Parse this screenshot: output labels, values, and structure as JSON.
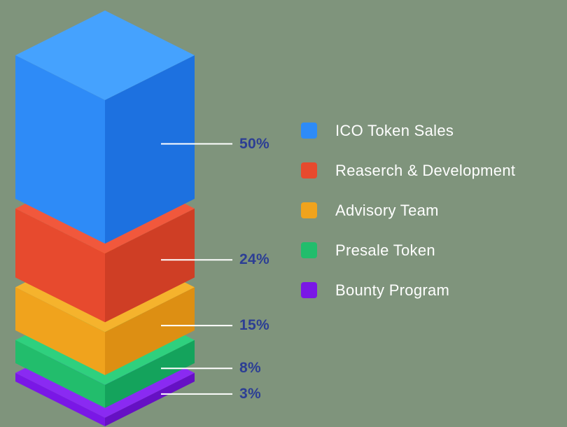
{
  "background": "#7f947c",
  "chart_data": {
    "type": "bar",
    "variant": "isometric-3d-stacked-column",
    "title": "",
    "unit": "%",
    "total": 100,
    "legend_position": "right",
    "value_label_color": "#2c3e94",
    "leader_line_color": "#ffffff",
    "legend_text_color": "#ffffff",
    "segments": [
      {
        "label": "ICO Token Sales",
        "value": 50,
        "value_label": "50%",
        "colors": {
          "top": "#45a2fe",
          "left": "#2e8bf7",
          "right": "#1d71e0"
        }
      },
      {
        "label": "Reaserch & Development",
        "value": 24,
        "value_label": "24%",
        "colors": {
          "top": "#f1583c",
          "left": "#e74a2e",
          "right": "#cf3e25"
        }
      },
      {
        "label": "Advisory Team",
        "value": 15,
        "value_label": "15%",
        "colors": {
          "top": "#f5b32d",
          "left": "#f0a31d",
          "right": "#dd8f13"
        }
      },
      {
        "label": "Presale Token",
        "value": 8,
        "value_label": "8%",
        "colors": {
          "top": "#2fd07e",
          "left": "#22bd6c",
          "right": "#14a35c"
        }
      },
      {
        "label": "Bounty Program",
        "value": 3,
        "value_label": "3%",
        "colors": {
          "top": "#8a2af2",
          "left": "#7a17e6",
          "right": "#6610c4"
        }
      }
    ]
  }
}
